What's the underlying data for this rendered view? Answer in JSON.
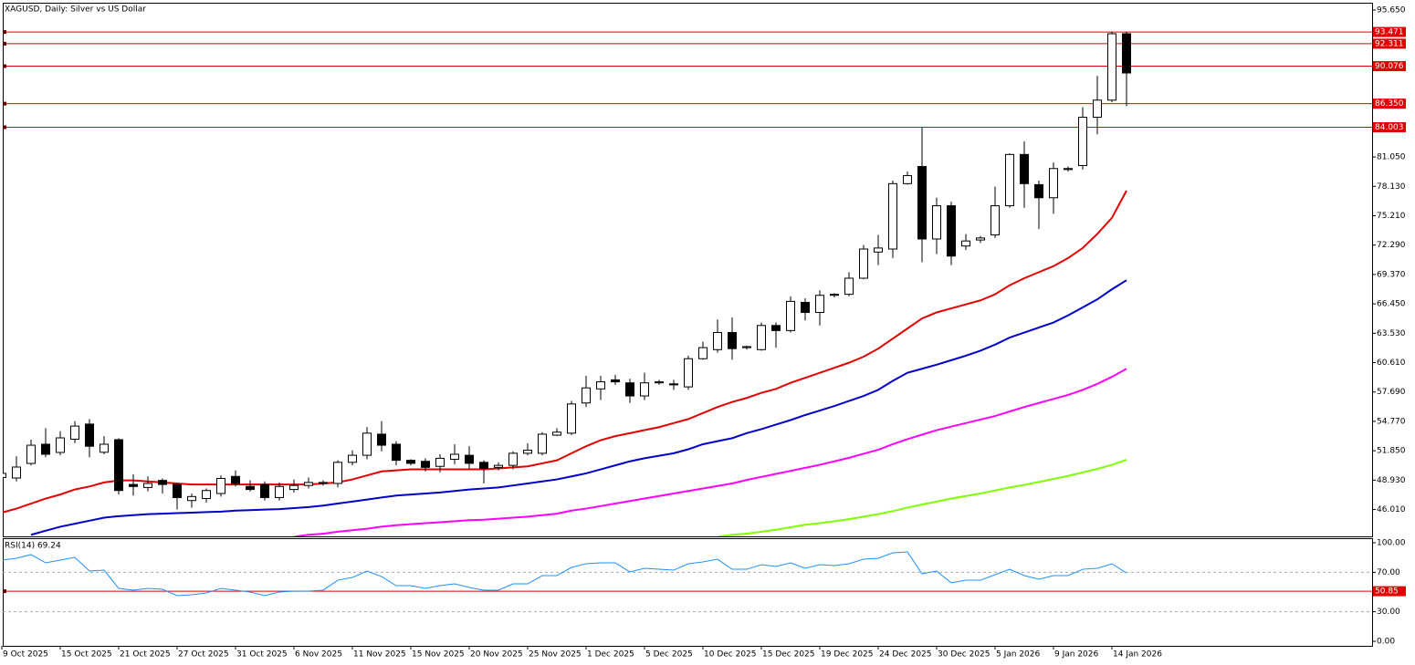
{
  "chart_data": [
    {
      "type": "candlestick",
      "title": "XAGUSD, Daily:  Silver vs US Dollar",
      "categories": [
        "9 Oct 2025",
        null,
        null,
        null,
        "15 Oct 2025",
        null,
        null,
        null,
        "21 Oct 2025",
        null,
        null,
        null,
        "27 Oct 2025",
        null,
        null,
        null,
        "31 Oct 2025",
        null,
        null,
        null,
        "6 Nov 2025",
        null,
        null,
        null,
        "11 Nov 2025",
        null,
        null,
        null,
        "15 Nov 2025",
        null,
        null,
        null,
        "20 Nov 2025",
        null,
        null,
        null,
        "25 Nov 2025",
        null,
        null,
        null,
        "1 Dec 2025",
        null,
        null,
        null,
        "5 Dec 2025",
        null,
        null,
        null,
        "10 Dec 2025",
        null,
        null,
        null,
        "15 Dec 2025",
        null,
        null,
        null,
        "19 Dec 2025",
        null,
        null,
        null,
        "24 Dec 2025",
        null,
        null,
        null,
        "30 Dec 2025",
        null,
        null,
        null,
        "5 Jan 2026",
        null,
        null,
        null,
        "9 Jan 2026",
        null,
        null,
        null,
        "14 Jan 2026",
        null
      ],
      "open": [
        49.2,
        49.14,
        50.59,
        52.5,
        51.68,
        53.0,
        54.5,
        51.7,
        52.95,
        48.5,
        48.2,
        48.9,
        48.5,
        46.9,
        47.1,
        47.6,
        49.3,
        48.3,
        48.5,
        47.2,
        48.0,
        48.4,
        48.6,
        48.6,
        50.7,
        51.4,
        53.5,
        52.5,
        50.9,
        50.8,
        50.3,
        51.0,
        51.4,
        50.7,
        50.2,
        50.4,
        51.6,
        51.6,
        53.4,
        53.6,
        56.6,
        58.0,
        58.9,
        58.6,
        57.3,
        58.6,
        58.5,
        58.2,
        61.0,
        61.9,
        63.6,
        62.1,
        61.9,
        64.3,
        63.8,
        66.6,
        65.6,
        67.3,
        67.4,
        69.0,
        71.6,
        71.9,
        78.4,
        80.1,
        72.9,
        76.2,
        72.2,
        72.8,
        73.3,
        76.2,
        81.3,
        78.3,
        77.0,
        79.8,
        80.2,
        85.0,
        86.7,
        93.3
      ],
      "high": [
        49.9,
        51.3,
        52.95,
        54.1,
        53.8,
        54.8,
        55.0,
        53.3,
        53.1,
        49.5,
        49.3,
        49.1,
        48.6,
        47.6,
        48.1,
        49.4,
        49.9,
        48.9,
        48.8,
        48.7,
        49.0,
        49.2,
        48.9,
        50.9,
        51.9,
        54.2,
        54.8,
        52.8,
        51.0,
        51.1,
        51.5,
        52.5,
        52.3,
        50.9,
        50.7,
        51.8,
        52.6,
        53.7,
        54.1,
        56.8,
        59.3,
        59.3,
        59.4,
        59.0,
        59.6,
        58.9,
        58.9,
        61.3,
        62.7,
        64.9,
        65.1,
        62.3,
        64.6,
        64.6,
        67.2,
        67.0,
        67.8,
        67.5,
        69.6,
        72.3,
        73.3,
        78.7,
        79.6,
        84.0,
        77.0,
        76.6,
        73.4,
        73.2,
        78.1,
        81.4,
        82.6,
        78.7,
        80.5,
        80.1,
        86.0,
        89.1,
        93.5,
        93.5
      ],
      "low": [
        49.0,
        48.8,
        50.4,
        51.2,
        51.4,
        52.6,
        51.2,
        51.5,
        47.5,
        47.4,
        47.8,
        47.6,
        46.0,
        46.2,
        46.7,
        47.3,
        48.3,
        47.8,
        46.9,
        46.9,
        47.7,
        48.1,
        48.4,
        48.2,
        50.4,
        51.0,
        51.8,
        50.4,
        50.4,
        49.8,
        49.7,
        50.5,
        50.1,
        48.6,
        49.9,
        50.0,
        51.4,
        51.4,
        53.3,
        53.4,
        56.2,
        56.9,
        58.4,
        56.6,
        56.9,
        58.4,
        57.9,
        57.9,
        60.9,
        61.6,
        60.9,
        61.9,
        61.8,
        62.1,
        63.6,
        64.8,
        64.3,
        67.1,
        67.2,
        68.9,
        70.3,
        71.0,
        78.3,
        70.6,
        71.4,
        70.3,
        71.8,
        72.5,
        73.0,
        76.0,
        76.0,
        73.9,
        75.4,
        79.6,
        79.8,
        83.3,
        86.5,
        86.1
      ],
      "close": [
        49.6,
        50.23,
        52.4,
        51.5,
        53.13,
        54.3,
        52.3,
        52.5,
        47.9,
        48.3,
        48.6,
        48.5,
        47.2,
        47.3,
        47.9,
        49.1,
        48.6,
        48.0,
        47.2,
        48.3,
        48.4,
        48.7,
        48.7,
        50.7,
        51.4,
        53.6,
        52.4,
        50.9,
        50.6,
        50.2,
        51.1,
        51.5,
        50.6,
        50.1,
        50.4,
        51.6,
        51.9,
        53.5,
        53.7,
        56.5,
        58.1,
        58.7,
        58.7,
        57.3,
        58.6,
        58.7,
        58.4,
        61.0,
        62.1,
        63.6,
        62.0,
        62.2,
        64.3,
        63.8,
        66.7,
        65.6,
        67.3,
        67.4,
        69.0,
        71.9,
        72.0,
        78.4,
        79.2,
        72.9,
        76.2,
        71.2,
        72.7,
        73.0,
        76.2,
        81.3,
        78.4,
        77.0,
        79.9,
        79.9,
        85.0,
        86.7,
        93.3,
        89.4
      ],
      "series": [
        {
          "color": "#e00000",
          "values": [
            45.7,
            46.1,
            46.6,
            47.1,
            47.5,
            48.0,
            48.3,
            48.7,
            48.9,
            48.9,
            48.8,
            48.7,
            48.6,
            48.5,
            48.5,
            48.5,
            48.5,
            48.5,
            48.5,
            48.5,
            48.5,
            48.5,
            48.6,
            48.7,
            49.0,
            49.4,
            49.8,
            49.9,
            50.0,
            50.0,
            50.0,
            50.0,
            50.0,
            50.0,
            50.1,
            50.2,
            50.3,
            50.6,
            50.9,
            51.6,
            52.3,
            52.9,
            53.3,
            53.6,
            53.9,
            54.2,
            54.6,
            55.0,
            55.6,
            56.2,
            56.7,
            57.1,
            57.6,
            58.0,
            58.6,
            59.1,
            59.6,
            60.1,
            60.6,
            61.2,
            62.0,
            63.0,
            64.0,
            65.0,
            65.6,
            66.0,
            66.4,
            66.8,
            67.4,
            68.3,
            69.0,
            69.6,
            70.2,
            71.0,
            72.0,
            73.4,
            75.0,
            77.7
          ]
        },
        {
          "color": "#0000c8",
          "values": [
            null,
            null,
            43.5,
            43.9,
            44.3,
            44.6,
            44.9,
            45.2,
            45.35,
            45.45,
            45.55,
            45.6,
            45.65,
            45.7,
            45.75,
            45.8,
            45.9,
            45.95,
            46.0,
            46.05,
            46.15,
            46.25,
            46.4,
            46.6,
            46.8,
            47.0,
            47.2,
            47.4,
            47.5,
            47.6,
            47.7,
            47.85,
            48.0,
            48.1,
            48.2,
            48.4,
            48.6,
            48.8,
            49.0,
            49.3,
            49.6,
            50.0,
            50.4,
            50.8,
            51.1,
            51.35,
            51.6,
            52.0,
            52.5,
            52.8,
            53.1,
            53.6,
            54.0,
            54.45,
            54.9,
            55.4,
            55.85,
            56.3,
            56.8,
            57.3,
            57.9,
            58.8,
            59.6,
            60.0,
            60.4,
            60.85,
            61.3,
            61.8,
            62.4,
            63.1,
            63.6,
            64.1,
            64.6,
            65.3,
            66.1,
            66.9,
            67.9,
            68.8
          ]
        },
        {
          "color": "#ff00ff",
          "values": [
            null,
            null,
            null,
            null,
            null,
            null,
            null,
            null,
            null,
            null,
            null,
            null,
            null,
            null,
            null,
            null,
            null,
            null,
            null,
            null,
            43.3,
            43.5,
            43.6,
            43.8,
            43.95,
            44.1,
            44.3,
            44.45,
            44.55,
            44.65,
            44.75,
            44.85,
            44.95,
            45.0,
            45.1,
            45.2,
            45.3,
            45.45,
            45.6,
            45.9,
            46.1,
            46.35,
            46.6,
            46.85,
            47.1,
            47.35,
            47.6,
            47.85,
            48.1,
            48.35,
            48.6,
            48.95,
            49.25,
            49.55,
            49.85,
            50.15,
            50.45,
            50.8,
            51.15,
            51.55,
            51.95,
            52.5,
            53.0,
            53.45,
            53.9,
            54.25,
            54.6,
            54.95,
            55.3,
            55.75,
            56.2,
            56.6,
            57.0,
            57.4,
            57.9,
            58.5,
            59.2,
            60.0
          ]
        },
        {
          "color": "#7fff00",
          "values": [
            null,
            null,
            null,
            null,
            null,
            null,
            null,
            null,
            null,
            null,
            null,
            null,
            null,
            null,
            null,
            null,
            null,
            null,
            null,
            null,
            null,
            null,
            null,
            null,
            null,
            null,
            null,
            null,
            null,
            null,
            null,
            null,
            null,
            null,
            null,
            null,
            null,
            null,
            null,
            null,
            null,
            null,
            null,
            null,
            null,
            null,
            null,
            null,
            null,
            43.3,
            43.5,
            43.6,
            43.8,
            44.0,
            44.25,
            44.5,
            44.65,
            44.85,
            45.05,
            45.3,
            45.55,
            45.85,
            46.2,
            46.5,
            46.8,
            47.1,
            47.35,
            47.6,
            47.9,
            48.2,
            48.45,
            48.75,
            49.05,
            49.35,
            49.7,
            50.05,
            50.45,
            50.95
          ]
        }
      ],
      "ylim": [
        43.34,
        96.38
      ],
      "yticks": [
        {
          "value": 95.65,
          "label": "95.650"
        },
        {
          "value": 81.05,
          "label": "81.050"
        },
        {
          "value": 78.13,
          "label": "78.130"
        },
        {
          "value": 75.21,
          "label": "75.210"
        },
        {
          "value": 72.29,
          "label": "72.290"
        },
        {
          "value": 69.37,
          "label": "69.370"
        },
        {
          "value": 66.45,
          "label": "66.450"
        },
        {
          "value": 63.53,
          "label": "63.530"
        },
        {
          "value": 60.61,
          "label": "60.610"
        },
        {
          "value": 57.69,
          "label": "57.690"
        },
        {
          "value": 54.77,
          "label": "54.770"
        },
        {
          "value": 51.85,
          "label": "51.850"
        },
        {
          "value": 48.93,
          "label": "48.930"
        },
        {
          "value": 46.01,
          "label": "46.010"
        }
      ],
      "levels": [
        {
          "value": 93.471,
          "label": "93.471"
        },
        {
          "value": 92.311,
          "label": "92.311"
        },
        {
          "value": 90.076,
          "label": "90.076"
        },
        {
          "value": 86.35,
          "label": "86.350"
        },
        {
          "value": 84.003,
          "label": "84.003"
        }
      ],
      "level_color": "#e00000",
      "up_color": "#ffffff",
      "down_color": "#000000"
    },
    {
      "type": "line",
      "title": "RSI(14) 69.24",
      "series": [
        {
          "color": "#1e90ff",
          "values": [
            82.4,
            84.3,
            88.0,
            79.6,
            82.4,
            85.2,
            71.3,
            72.2,
            53.7,
            51.9,
            53.7,
            52.8,
            46.3,
            47.2,
            49.1,
            53.7,
            51.9,
            50.0,
            46.3,
            50.0,
            50.9,
            50.9,
            51.9,
            62.0,
            64.8,
            71.3,
            65.7,
            56.5,
            56.5,
            53.7,
            56.5,
            58.3,
            54.6,
            51.9,
            51.9,
            58.3,
            58.3,
            66.7,
            66.7,
            75.0,
            78.7,
            79.6,
            79.6,
            70.4,
            74.1,
            73.1,
            72.2,
            78.7,
            80.6,
            83.3,
            73.1,
            73.1,
            77.8,
            75.9,
            79.6,
            74.1,
            77.8,
            76.9,
            78.7,
            83.3,
            84.3,
            89.8,
            90.7,
            68.5,
            71.3,
            59.3,
            62.0,
            62.0,
            67.6,
            73.1,
            66.7,
            63.0,
            66.7,
            66.7,
            73.1,
            74.1,
            78.7,
            69.24
          ]
        }
      ],
      "ylim": [
        -4.6,
        103.7
      ],
      "yticks": [
        {
          "value": 100,
          "label": "100.00"
        },
        {
          "value": 70,
          "label": "70.00"
        },
        {
          "value": 30,
          "label": "30.00"
        },
        {
          "value": 0,
          "label": "0.00"
        }
      ],
      "levels": [
        50.85
      ],
      "level_color": "#e00000",
      "grid": true
    }
  ]
}
